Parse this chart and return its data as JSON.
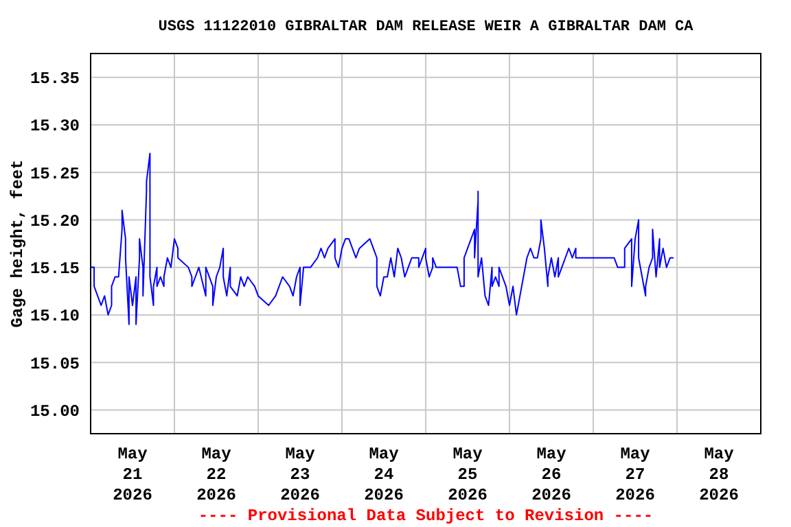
{
  "chart_data": {
    "type": "line",
    "title": "USGS 11122010 GIBRALTAR DAM RELEASE WEIR A GIBRALTAR DAM CA",
    "ylabel": "Gage height, feet",
    "annotations": [
      "---- Provisional Data Subject to Revision ----"
    ],
    "grid": true,
    "marker": "none",
    "xlim": [
      "2026-05-21T00:00",
      "2026-05-29T00:00"
    ],
    "xticks": [
      {
        "value": "2026-05-21T12:00",
        "label": "May\n21\n2026"
      },
      {
        "value": "2026-05-22T12:00",
        "label": "May\n22\n2026"
      },
      {
        "value": "2026-05-23T12:00",
        "label": "May\n23\n2026"
      },
      {
        "value": "2026-05-24T12:00",
        "label": "May\n24\n2026"
      },
      {
        "value": "2026-05-25T12:00",
        "label": "May\n25\n2026"
      },
      {
        "value": "2026-05-26T12:00",
        "label": "May\n26\n2026"
      },
      {
        "value": "2026-05-27T12:00",
        "label": "May\n27\n2026"
      },
      {
        "value": "2026-05-28T12:00",
        "label": "May\n28\n2026"
      }
    ],
    "ylim": [
      14.975,
      15.375
    ],
    "yticks": [
      {
        "value": 15.0,
        "label": "15.00"
      },
      {
        "value": 15.05,
        "label": "15.05"
      },
      {
        "value": 15.1,
        "label": "15.10"
      },
      {
        "value": 15.15,
        "label": "15.15"
      },
      {
        "value": 15.2,
        "label": "15.20"
      },
      {
        "value": 15.25,
        "label": "15.25"
      },
      {
        "value": 15.3,
        "label": "15.30"
      },
      {
        "value": 15.35,
        "label": "15.35"
      }
    ],
    "series": [
      {
        "color": "#0000ff",
        "x": [
          "2026-05-21T00:00",
          "2026-05-21T01:00",
          "2026-05-21T01:00",
          "2026-05-21T02:00",
          "2026-05-21T03:00",
          "2026-05-21T04:00",
          "2026-05-21T05:00",
          "2026-05-21T06:00",
          "2026-05-21T06:00",
          "2026-05-21T07:00",
          "2026-05-21T08:00",
          "2026-05-21T09:00",
          "2026-05-21T09:00",
          "2026-05-21T10:00",
          "2026-05-21T10:00",
          "2026-05-21T11:00",
          "2026-05-21T11:00",
          "2026-05-21T12:00",
          "2026-05-21T13:00",
          "2026-05-21T13:00",
          "2026-05-21T14:00",
          "2026-05-21T14:00",
          "2026-05-21T15:00",
          "2026-05-21T15:00",
          "2026-05-21T16:00",
          "2026-05-21T16:00",
          "2026-05-21T17:00",
          "2026-05-21T17:00",
          "2026-05-21T18:00",
          "2026-05-21T18:00",
          "2026-05-21T19:00",
          "2026-05-21T19:00",
          "2026-05-21T20:00",
          "2026-05-21T21:00",
          "2026-05-21T21:00",
          "2026-05-21T22:00",
          "2026-05-21T23:00",
          "2026-05-22T00:00",
          "2026-05-22T01:00",
          "2026-05-22T01:00",
          "2026-05-22T04:00",
          "2026-05-22T05:00",
          "2026-05-22T05:00",
          "2026-05-22T06:00",
          "2026-05-22T07:00",
          "2026-05-22T09:00",
          "2026-05-22T09:00",
          "2026-05-22T11:00",
          "2026-05-22T11:00",
          "2026-05-22T12:00",
          "2026-05-22T13:00",
          "2026-05-22T14:00",
          "2026-05-22T14:00",
          "2026-05-22T15:00",
          "2026-05-22T16:00",
          "2026-05-22T16:00",
          "2026-05-22T18:00",
          "2026-05-22T19:00",
          "2026-05-22T20:00",
          "2026-05-22T21:00",
          "2026-05-22T23:00",
          "2026-05-23T00:00",
          "2026-05-23T03:00",
          "2026-05-23T05:00",
          "2026-05-23T07:00",
          "2026-05-23T09:00",
          "2026-05-23T10:00",
          "2026-05-23T11:00",
          "2026-05-23T12:00",
          "2026-05-23T12:00",
          "2026-05-23T13:00",
          "2026-05-23T14:00",
          "2026-05-23T15:00",
          "2026-05-23T17:00",
          "2026-05-23T18:00",
          "2026-05-23T19:00",
          "2026-05-23T20:00",
          "2026-05-23T22:00",
          "2026-05-23T22:00",
          "2026-05-23T23:00",
          "2026-05-24T00:00",
          "2026-05-24T01:00",
          "2026-05-24T02:00",
          "2026-05-24T03:00",
          "2026-05-24T04:00",
          "2026-05-24T05:00",
          "2026-05-24T08:00",
          "2026-05-24T09:00",
          "2026-05-24T10:00",
          "2026-05-24T10:00",
          "2026-05-24T11:00",
          "2026-05-24T12:00",
          "2026-05-24T13:00",
          "2026-05-24T14:00",
          "2026-05-24T15:00",
          "2026-05-24T16:00",
          "2026-05-24T17:00",
          "2026-05-24T18:00",
          "2026-05-24T19:00",
          "2026-05-24T20:00",
          "2026-05-24T22:00",
          "2026-05-24T22:00",
          "2026-05-25T00:00",
          "2026-05-25T00:00",
          "2026-05-25T01:00",
          "2026-05-25T02:00",
          "2026-05-25T02:00",
          "2026-05-25T03:00",
          "2026-05-25T09:00",
          "2026-05-25T10:00",
          "2026-05-25T11:00",
          "2026-05-25T11:00",
          "2026-05-25T12:00",
          "2026-05-25T13:00",
          "2026-05-25T14:00",
          "2026-05-25T14:00",
          "2026-05-25T15:00",
          "2026-05-25T15:00",
          "2026-05-25T15:00",
          "2026-05-25T16:00",
          "2026-05-25T17:00",
          "2026-05-25T18:00",
          "2026-05-25T19:00",
          "2026-05-25T19:00",
          "2026-05-25T20:00",
          "2026-05-25T21:00",
          "2026-05-25T21:00",
          "2026-05-25T22:00",
          "2026-05-25T23:00",
          "2026-05-26T00:00",
          "2026-05-26T01:00",
          "2026-05-26T02:00",
          "2026-05-26T03:00",
          "2026-05-26T04:00",
          "2026-05-26T05:00",
          "2026-05-26T06:00",
          "2026-05-26T07:00",
          "2026-05-26T08:00",
          "2026-05-26T09:00",
          "2026-05-26T09:00",
          "2026-05-26T10:00",
          "2026-05-26T11:00",
          "2026-05-26T11:00",
          "2026-05-26T12:00",
          "2026-05-26T13:00",
          "2026-05-26T14:00",
          "2026-05-26T14:00",
          "2026-05-26T15:00",
          "2026-05-26T16:00",
          "2026-05-26T17:00",
          "2026-05-26T18:00",
          "2026-05-26T19:00",
          "2026-05-26T19:00",
          "2026-05-27T06:00",
          "2026-05-27T07:00",
          "2026-05-27T09:00",
          "2026-05-27T09:00",
          "2026-05-27T11:00",
          "2026-05-27T11:00",
          "2026-05-27T12:00",
          "2026-05-27T13:00",
          "2026-05-27T13:00",
          "2026-05-27T14:00",
          "2026-05-27T15:00",
          "2026-05-27T15:00",
          "2026-05-27T16:00",
          "2026-05-27T17:00",
          "2026-05-27T17:00",
          "2026-05-27T18:00",
          "2026-05-27T19:00",
          "2026-05-27T19:00",
          "2026-05-27T20:00",
          "2026-05-27T21:00",
          "2026-05-27T22:00",
          "2026-05-27T23:00"
        ],
        "values": [
          15.15,
          15.15,
          15.13,
          15.12,
          15.11,
          15.12,
          15.1,
          15.11,
          15.13,
          15.14,
          15.14,
          15.19,
          15.21,
          15.18,
          15.16,
          15.09,
          15.14,
          15.11,
          15.14,
          15.09,
          15.16,
          15.18,
          15.15,
          15.12,
          15.23,
          15.24,
          15.27,
          15.14,
          15.11,
          15.13,
          15.15,
          15.13,
          15.14,
          15.13,
          15.14,
          15.16,
          15.15,
          15.18,
          15.17,
          15.16,
          15.15,
          15.14,
          15.13,
          15.14,
          15.15,
          15.12,
          15.15,
          15.13,
          15.11,
          15.14,
          15.15,
          15.17,
          15.14,
          15.12,
          15.15,
          15.13,
          15.12,
          15.14,
          15.13,
          15.14,
          15.13,
          15.12,
          15.11,
          15.12,
          15.14,
          15.13,
          15.12,
          15.14,
          15.15,
          15.11,
          15.15,
          15.15,
          15.15,
          15.16,
          15.17,
          15.16,
          15.17,
          15.18,
          15.16,
          15.15,
          15.17,
          15.18,
          15.18,
          15.17,
          15.16,
          15.17,
          15.18,
          15.17,
          15.16,
          15.13,
          15.12,
          15.14,
          15.14,
          15.16,
          15.14,
          15.17,
          15.16,
          15.14,
          15.15,
          15.16,
          15.16,
          15.15,
          15.17,
          15.16,
          15.14,
          15.15,
          15.16,
          15.15,
          15.15,
          15.13,
          15.13,
          15.16,
          15.17,
          15.18,
          15.19,
          15.16,
          15.22,
          15.23,
          15.14,
          15.16,
          15.12,
          15.11,
          15.15,
          15.13,
          15.14,
          15.13,
          15.15,
          15.14,
          15.13,
          15.11,
          15.13,
          15.1,
          15.12,
          15.14,
          15.16,
          15.17,
          15.16,
          15.16,
          15.18,
          15.2,
          15.17,
          15.13,
          15.14,
          15.16,
          15.14,
          15.16,
          15.14,
          15.15,
          15.16,
          15.17,
          15.16,
          15.17,
          15.16,
          15.16,
          15.15,
          15.15,
          15.17,
          15.18,
          15.13,
          15.18,
          15.2,
          15.16,
          15.14,
          15.12,
          15.13,
          15.15,
          15.16,
          15.19,
          15.14,
          15.18,
          15.15,
          15.17,
          15.15,
          15.16,
          15.16
        ]
      }
    ]
  }
}
